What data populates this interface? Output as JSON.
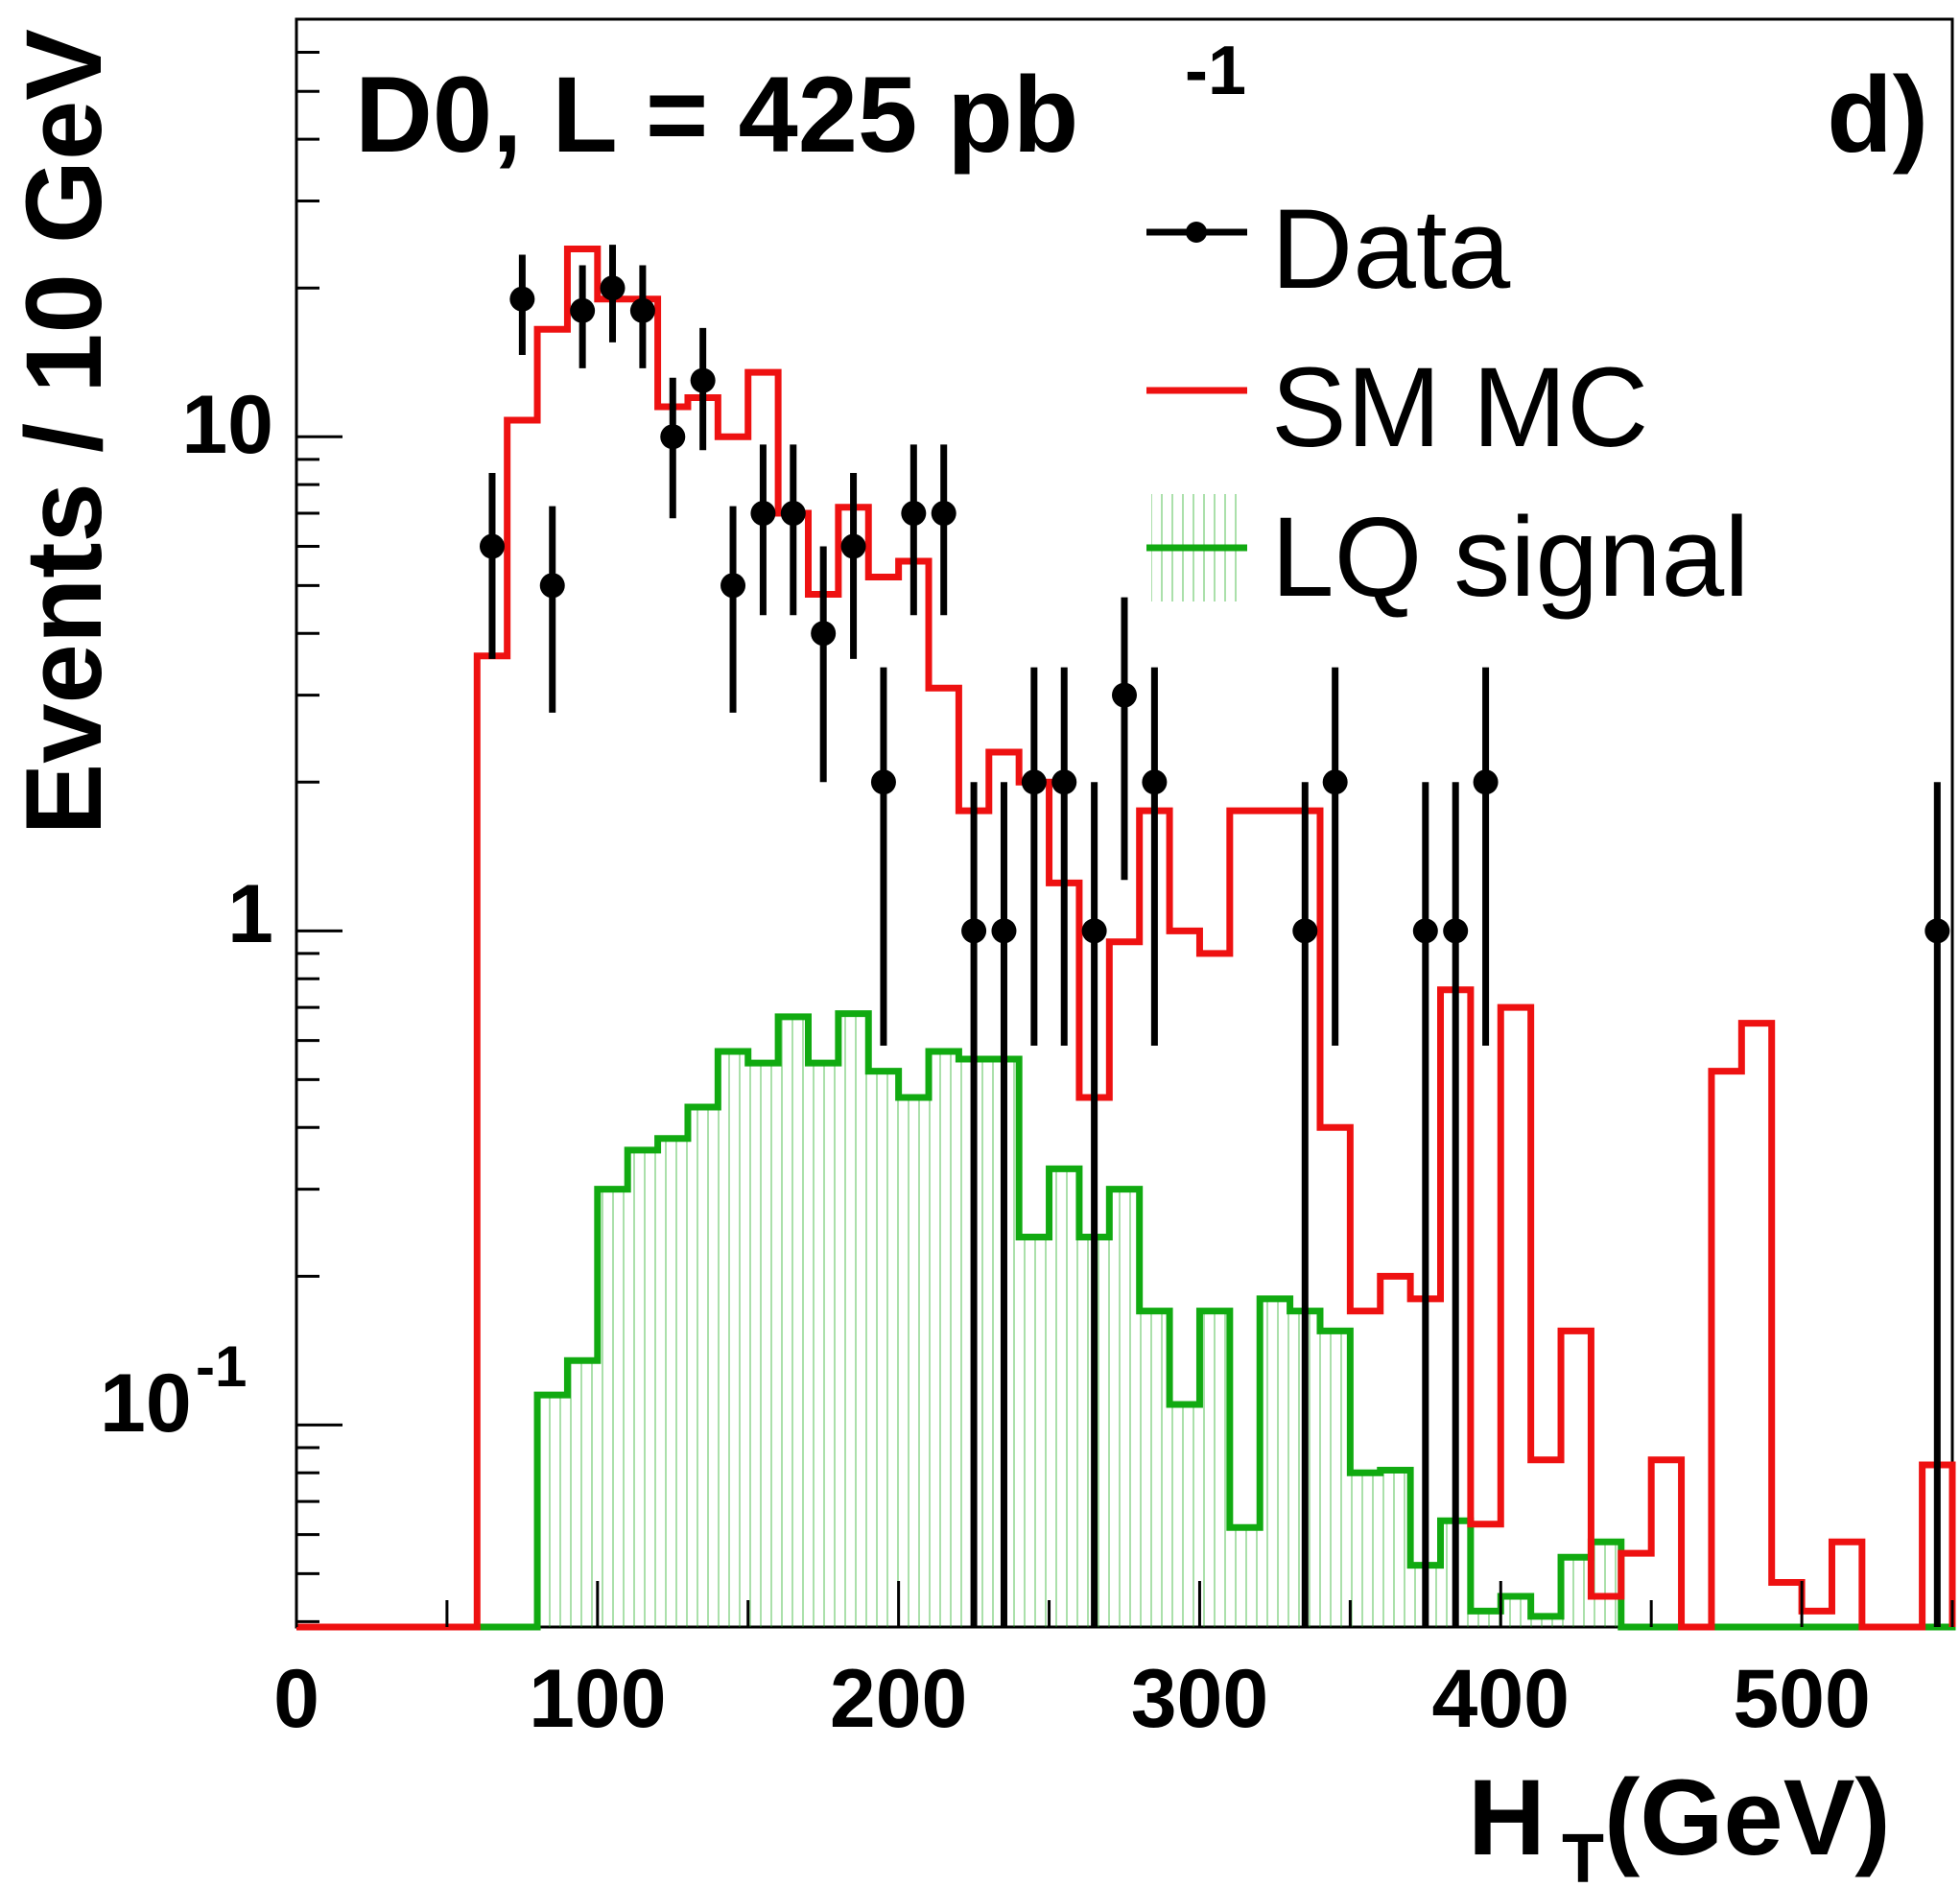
{
  "chart_data": {
    "type": "histogram",
    "title": "D0, L = 425 pb",
    "title_superscript": "-1",
    "panel_label": "d)",
    "xlabel_main": "H",
    "xlabel_subscript": "T",
    "xlabel_unit": "(GeV)",
    "ylabel": "Events / 10 GeV",
    "xlim": [
      0,
      550
    ],
    "ylim": [
      0.039,
      70
    ],
    "y_scale": "log",
    "x_ticks": [
      "0",
      "100",
      "200",
      "300",
      "400",
      "500"
    ],
    "y_tick_labels": [
      {
        "value": 10,
        "label": "10"
      },
      {
        "value": 1,
        "label": "1"
      },
      {
        "value": 0.1,
        "label_base": "10",
        "label_exp": "-1"
      }
    ],
    "legend": {
      "placement": "top-right",
      "entries": [
        {
          "label": "Data",
          "style": "marker-errorbar",
          "color": "#000000"
        },
        {
          "label": "SM MC",
          "style": "line",
          "color": "#ee1111"
        },
        {
          "label": "LQ signal",
          "style": "hatched-line",
          "color": "#11aa11"
        }
      ]
    },
    "series": [
      {
        "name": "SM MC",
        "color": "#ee1111",
        "bin_width": 10,
        "bins_x_start": 60,
        "values": [
          3.6,
          10.8,
          16.5,
          24,
          19,
          19,
          11.5,
          12,
          10,
          13.5,
          7,
          4.8,
          7.2,
          5.2,
          5.6,
          3.1,
          1.75,
          2.3,
          2.0,
          1.25,
          0.46,
          0.95,
          1.75,
          1.0,
          0.9,
          1.75,
          1.75,
          1.75,
          0.4,
          0.17,
          0.2,
          0.18,
          0.76,
          0.063,
          0.7,
          0.085,
          0.155,
          0.045,
          0.055,
          0.085,
          0.034,
          0.52,
          0.65,
          0.048,
          0.042,
          0.058,
          0.034,
          0.034,
          0.083,
          0.034
        ]
      },
      {
        "name": "LQ signal",
        "color": "#11aa11",
        "bin_width": 10,
        "bins_x_start": 80,
        "values": [
          0.115,
          0.135,
          0.3,
          0.36,
          0.38,
          0.44,
          0.57,
          0.54,
          0.67,
          0.54,
          0.68,
          0.52,
          0.46,
          0.57,
          0.55,
          0.55,
          0.24,
          0.33,
          0.24,
          0.3,
          0.17,
          0.11,
          0.17,
          0.062,
          0.18,
          0.17,
          0.155,
          0.08,
          0.081,
          0.052,
          0.064,
          0.042,
          0.045,
          0.041,
          0.054,
          0.058,
          0.034,
          0.034,
          0.034,
          0.034,
          0.034,
          0.034,
          0.034,
          0.034,
          0.034,
          0.034,
          0.034,
          0.055
        ]
      },
      {
        "name": "Data",
        "color": "#000000",
        "x": [
          65,
          75,
          85,
          95,
          105,
          115,
          125,
          135,
          145,
          155,
          165,
          175,
          185,
          195,
          205,
          215,
          225,
          235,
          245,
          255,
          265,
          275,
          285,
          335,
          345,
          375,
          385,
          395,
          545
        ],
        "y": [
          6,
          19,
          5,
          18,
          20,
          18,
          10,
          13,
          5,
          7,
          7,
          4,
          6,
          2,
          7,
          7,
          1,
          1,
          2,
          2,
          1,
          3,
          2,
          1,
          2,
          1,
          1,
          2,
          1
        ]
      }
    ]
  }
}
